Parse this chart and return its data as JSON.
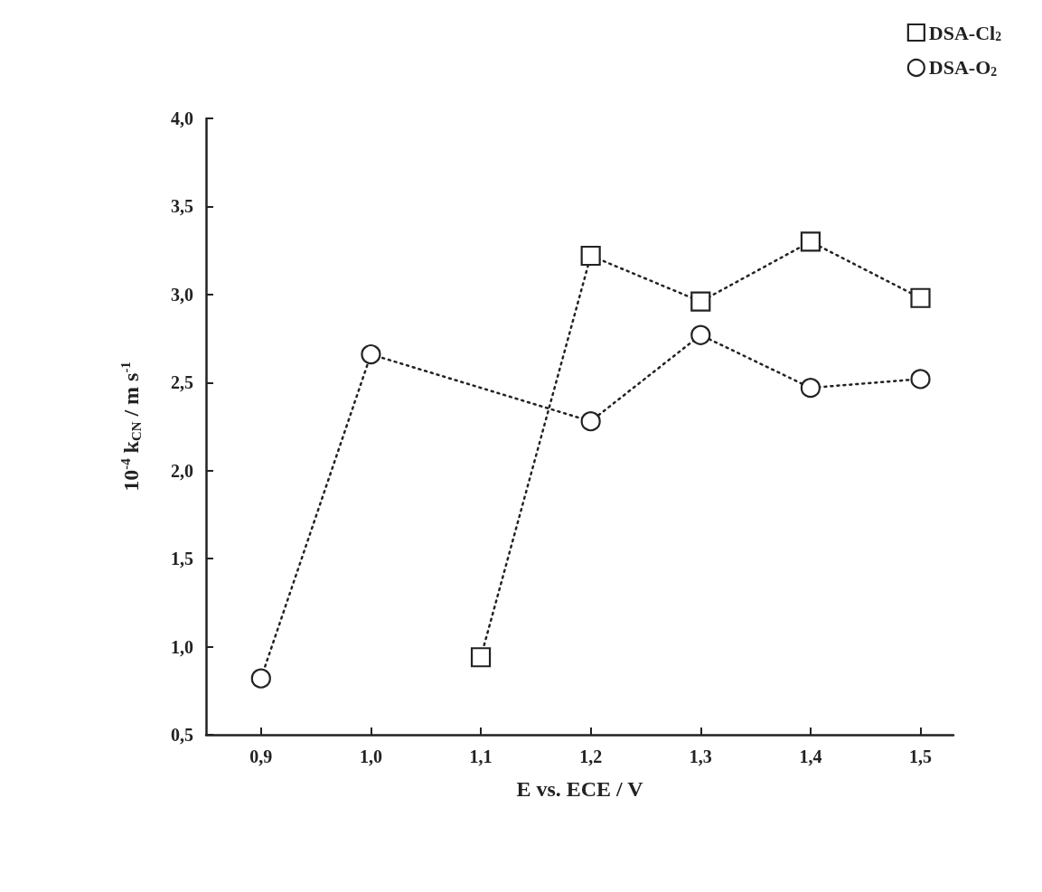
{
  "chart_data": {
    "type": "line",
    "xlabel": "E vs. ECE / V",
    "ylabel": "10$^{-4}$ k$_{CN}$ / m s$^{-1}$",
    "xlim": [
      0.85,
      1.53
    ],
    "xticks": [
      {
        "value": 0.9,
        "label": "0,9"
      },
      {
        "value": 1.0,
        "label": "1,0"
      },
      {
        "value": 1.1,
        "label": "1,1"
      },
      {
        "value": 1.2,
        "label": "1,2"
      },
      {
        "value": 1.3,
        "label": "1,3"
      },
      {
        "value": 1.4,
        "label": "1,4"
      },
      {
        "value": 1.5,
        "label": "1,5"
      }
    ],
    "ylim": [
      0.5,
      4.0
    ],
    "yticks": [
      {
        "value": 0.5,
        "label": "0,5"
      },
      {
        "value": 1.0,
        "label": "1,0"
      },
      {
        "value": 1.5,
        "label": "1,5"
      },
      {
        "value": 2.0,
        "label": "2,0"
      },
      {
        "value": 2.5,
        "label": "2,5"
      },
      {
        "value": 3.0,
        "label": "3,0"
      },
      {
        "value": 3.5,
        "label": "3,5"
      },
      {
        "value": 4.0,
        "label": "4,0"
      }
    ],
    "series": [
      {
        "name": "DSA-Cl$_{2}$",
        "color": "#222222",
        "marker": "square",
        "x": [
          1.1,
          1.2,
          1.3,
          1.4,
          1.5
        ],
        "values": [
          0.94,
          3.22,
          2.96,
          3.3,
          2.98
        ]
      },
      {
        "name": "DSA-O$_{2}$",
        "color": "#222222",
        "marker": "circle",
        "x": [
          0.9,
          1.0,
          1.2,
          1.3,
          1.4,
          1.5
        ],
        "values": [
          0.82,
          2.66,
          2.28,
          2.77,
          2.47,
          2.52
        ]
      }
    ],
    "line_style": "dotted",
    "grid": false,
    "legend": "top right"
  }
}
